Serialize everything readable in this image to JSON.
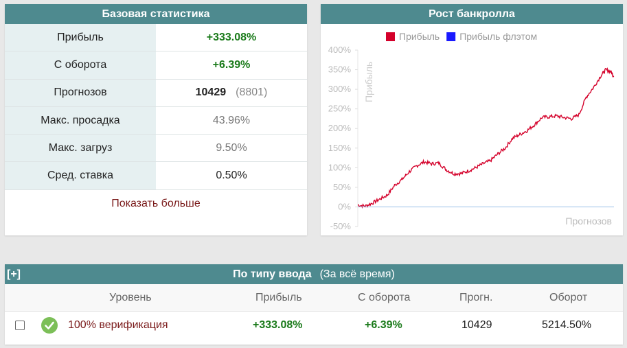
{
  "stats": {
    "title": "Базовая статистика",
    "rows": [
      {
        "label": "Прибыль",
        "value": "+333.08%"
      },
      {
        "label": "С оборота",
        "value": "+6.39%"
      },
      {
        "label": "Прогнозов",
        "value": "10429",
        "extra": "(8801)"
      },
      {
        "label": "Макс. просадка",
        "value": "43.96%"
      },
      {
        "label": "Макс. загруз",
        "value": "9.50%"
      },
      {
        "label": "Сред. ставка",
        "value": "0.50%"
      }
    ],
    "show_more": "Показать больше"
  },
  "chart": {
    "title": "Рост банкролла"
  },
  "chart_data": {
    "type": "line",
    "title": "Рост банкролла",
    "xlabel": "Прогнозов",
    "ylabel": "Прибыль",
    "yticks": [
      "400%",
      "350%",
      "300%",
      "250%",
      "200%",
      "150%",
      "100%",
      "50%",
      "0%",
      "-50%"
    ],
    "ylim": [
      -50,
      400
    ],
    "xlim": [
      0,
      10429
    ],
    "legend": "top",
    "series": [
      {
        "name": "Прибыль",
        "color": "#d4002a",
        "x": [
          0,
          300,
          600,
          900,
          1200,
          1500,
          1800,
          2100,
          2400,
          2700,
          3000,
          3300,
          3600,
          3900,
          4200,
          4500,
          4800,
          5100,
          5400,
          5700,
          6000,
          6300,
          6600,
          6900,
          7200,
          7500,
          7800,
          8100,
          8400,
          8700,
          9000,
          9300,
          9600,
          9900,
          10100,
          10300,
          10429
        ],
        "y": [
          5,
          2,
          10,
          20,
          30,
          55,
          70,
          90,
          105,
          115,
          110,
          112,
          95,
          85,
          85,
          92,
          100,
          110,
          118,
          135,
          150,
          175,
          185,
          195,
          210,
          228,
          230,
          232,
          228,
          225,
          235,
          280,
          305,
          335,
          350,
          345,
          333
        ]
      },
      {
        "name": "Прибыль флэтом",
        "color": "#1a1aff",
        "x": [
          0,
          10429
        ],
        "y": [
          0,
          0
        ]
      }
    ]
  },
  "bytype": {
    "toggle": "[+]",
    "title": "По типу ввода",
    "subtitle": "(За всё время)",
    "headers": {
      "level": "Уровень",
      "profit": "Прибыль",
      "turnover": "С оборота",
      "forecasts": "Прогн.",
      "volume": "Оборот"
    },
    "rows": [
      {
        "level": "100% верификация",
        "profit": "+333.08%",
        "turnover": "+6.39%",
        "forecasts": "10429",
        "volume": "5214.50%"
      }
    ]
  }
}
